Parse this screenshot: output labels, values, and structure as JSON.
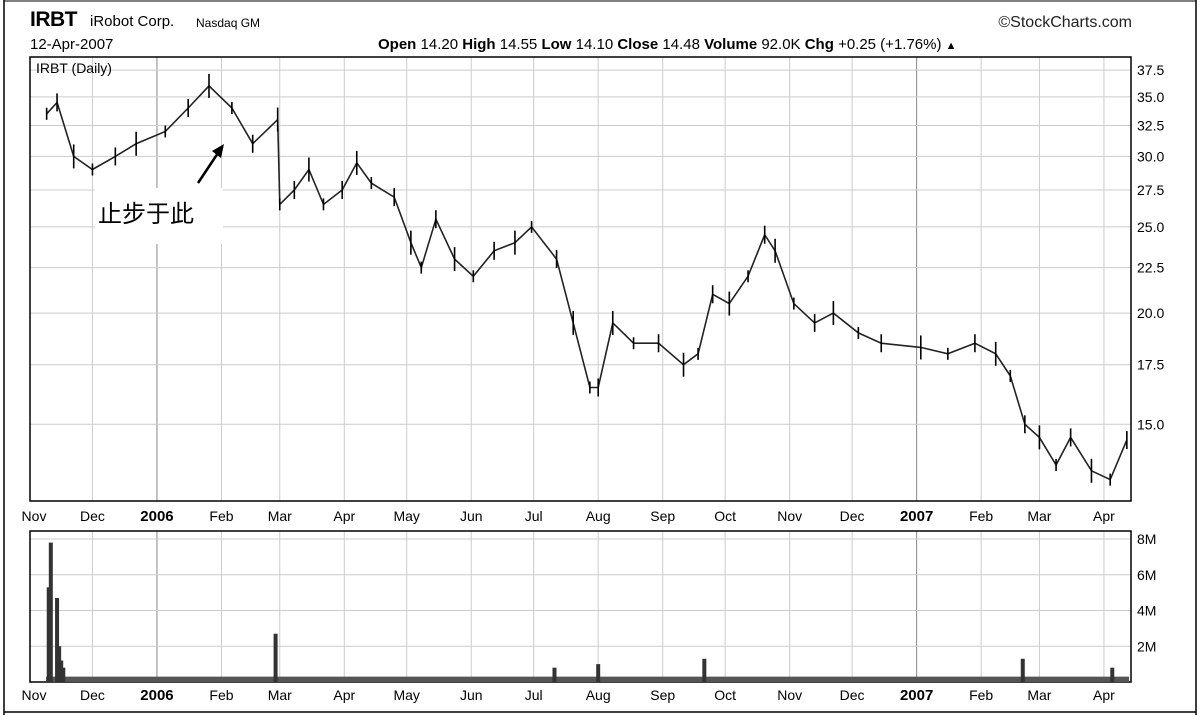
{
  "header": {
    "ticker": "IRBT",
    "company": "iRobot Corp.",
    "exchange": "Nasdaq GM",
    "date": "12-Apr-2007",
    "source": "©StockCharts.com",
    "quote": [
      {
        "label": "Open",
        "value": "14.20"
      },
      {
        "label": "High",
        "value": "14.55"
      },
      {
        "label": "Low",
        "value": "14.10"
      },
      {
        "label": "Close",
        "value": "14.48"
      },
      {
        "label": "Volume",
        "value": "92.0K"
      },
      {
        "label": "Chg",
        "value": "+0.25 (+1.76%)"
      }
    ],
    "chg_arrow": "▲"
  },
  "annotation": {
    "text": "止步于此",
    "arrow": "arrow-up-right-icon"
  },
  "chart_data": [
    {
      "type": "line",
      "subtitle": "IRBT (Daily)",
      "scale": "log",
      "ylim": [
        12.3,
        38.8
      ],
      "yticks": [
        15.0,
        17.5,
        20.0,
        22.5,
        25.0,
        27.5,
        30.0,
        32.5,
        35.0,
        37.5
      ],
      "ytick_labels": [
        "15.0",
        "17.5",
        "20.0",
        "22.5",
        "25.0",
        "27.5",
        "30.0",
        "32.5",
        "35.0",
        "37.5"
      ],
      "xticks": [
        {
          "label": "Nov",
          "bold": false
        },
        {
          "label": "Dec",
          "bold": false
        },
        {
          "label": "2006",
          "bold": true
        },
        {
          "label": "Feb",
          "bold": false
        },
        {
          "label": "Mar",
          "bold": false
        },
        {
          "label": "Apr",
          "bold": false
        },
        {
          "label": "May",
          "bold": false
        },
        {
          "label": "Jun",
          "bold": false
        },
        {
          "label": "Jul",
          "bold": false
        },
        {
          "label": "Aug",
          "bold": false
        },
        {
          "label": "Sep",
          "bold": false
        },
        {
          "label": "Oct",
          "bold": false
        },
        {
          "label": "Nov",
          "bold": false
        },
        {
          "label": "Dec",
          "bold": false
        },
        {
          "label": "2007",
          "bold": true
        },
        {
          "label": "Feb",
          "bold": false
        },
        {
          "label": "Mar",
          "bold": false
        },
        {
          "label": "Apr",
          "bold": false
        }
      ],
      "series": [
        {
          "x": [
            "2005-11-09",
            "2005-11-14",
            "2005-11-22",
            "2005-12-01",
            "2005-12-12",
            "2005-12-22",
            "2006-01-05",
            "2006-01-16",
            "2006-01-26",
            "2006-02-06",
            "2006-02-16",
            "2006-02-28",
            "2006-03-01",
            "2006-03-08",
            "2006-03-15",
            "2006-03-22",
            "2006-03-31",
            "2006-04-07",
            "2006-04-14",
            "2006-04-25",
            "2006-05-03",
            "2006-05-08",
            "2006-05-15",
            "2006-05-24",
            "2006-06-02",
            "2006-06-12",
            "2006-06-22",
            "2006-06-30",
            "2006-07-12",
            "2006-07-20",
            "2006-07-28",
            "2006-08-01",
            "2006-08-08",
            "2006-08-18",
            "2006-08-30",
            "2006-09-11",
            "2006-09-18",
            "2006-09-25",
            "2006-10-03",
            "2006-10-12",
            "2006-10-20",
            "2006-10-25",
            "2006-11-03",
            "2006-11-13",
            "2006-11-22",
            "2006-12-04",
            "2006-12-15",
            "2007-01-03",
            "2007-01-16",
            "2007-01-29",
            "2007-02-08",
            "2007-02-15",
            "2007-02-22",
            "2007-03-01",
            "2007-03-09",
            "2007-03-16",
            "2007-03-26",
            "2007-04-04",
            "2007-04-12"
          ],
          "y": [
            33.5,
            34.5,
            30.0,
            29.0,
            30.0,
            31.0,
            32.0,
            34.0,
            36.0,
            34.0,
            31.0,
            33.0,
            26.5,
            27.5,
            29.0,
            26.5,
            27.5,
            29.5,
            28.0,
            27.0,
            24.0,
            22.5,
            25.5,
            23.0,
            22.0,
            23.5,
            24.0,
            25.0,
            23.0,
            19.5,
            16.5,
            16.5,
            19.5,
            18.5,
            18.5,
            17.5,
            18.0,
            21.0,
            20.5,
            22.0,
            24.5,
            23.5,
            20.5,
            19.5,
            20.0,
            19.0,
            18.5,
            18.3,
            18.0,
            18.5,
            18.0,
            17.0,
            15.0,
            14.5,
            13.5,
            14.5,
            13.3,
            13.0,
            14.4
          ]
        }
      ]
    },
    {
      "type": "bar",
      "series_label": "Volume",
      "ylim": [
        0,
        8000000
      ],
      "yticks": [
        2000000,
        4000000,
        6000000,
        8000000
      ],
      "ytick_labels": [
        "2M",
        "4M",
        "6M",
        "8M"
      ],
      "x": [
        "2005-11-10",
        "2005-11-11",
        "2005-11-14",
        "2005-11-15",
        "2005-11-16",
        "2005-11-17",
        "2006-02-27",
        "2006-07-11",
        "2006-08-01",
        "2006-09-21",
        "2007-02-21",
        "2007-04-05"
      ],
      "values": [
        5300000,
        7800000,
        4700000,
        2000000,
        1200000,
        800000,
        2700000,
        800000,
        1000000,
        1300000,
        1300000,
        800000
      ],
      "baseline": 300000
    }
  ]
}
